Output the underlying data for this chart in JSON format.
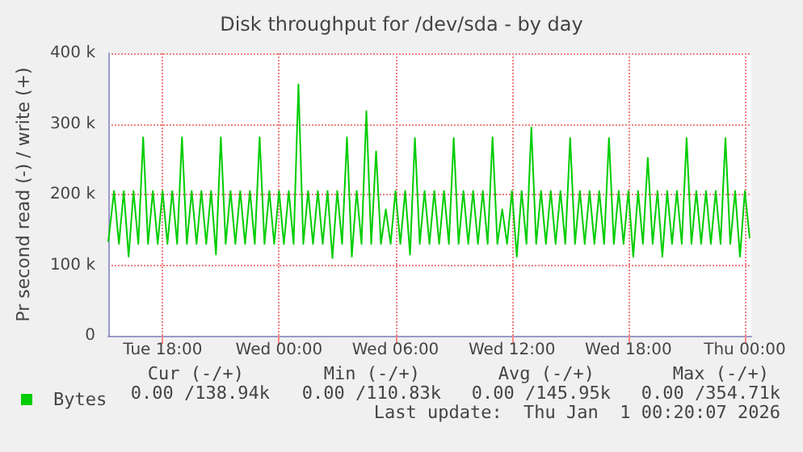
{
  "chart_data": {
    "type": "line",
    "title": "Disk throughput for /dev/sda - by day",
    "ylabel": "Pr second read (-) / write (+)",
    "x": [
      "2025-12-30T15:12",
      "2025-12-30T15:30",
      "2025-12-30T15:45",
      "2025-12-30T16:00",
      "2025-12-30T16:15",
      "2025-12-30T16:30",
      "2025-12-30T16:45",
      "2025-12-30T17:00",
      "2025-12-30T17:15",
      "2025-12-30T17:30",
      "2025-12-30T17:45",
      "2025-12-30T18:00",
      "2025-12-30T18:15",
      "2025-12-30T18:30",
      "2025-12-30T18:45",
      "2025-12-30T19:00",
      "2025-12-30T19:15",
      "2025-12-30T19:30",
      "2025-12-30T19:45",
      "2025-12-30T20:00",
      "2025-12-30T20:15",
      "2025-12-30T20:30",
      "2025-12-30T20:45",
      "2025-12-30T21:00",
      "2025-12-30T21:15",
      "2025-12-30T21:30",
      "2025-12-30T21:45",
      "2025-12-30T22:00",
      "2025-12-30T22:15",
      "2025-12-30T22:30",
      "2025-12-30T22:45",
      "2025-12-30T23:00",
      "2025-12-30T23:15",
      "2025-12-30T23:30",
      "2025-12-30T23:45",
      "2025-12-31T00:00",
      "2025-12-31T00:15",
      "2025-12-31T00:30",
      "2025-12-31T00:45",
      "2025-12-31T01:00",
      "2025-12-31T01:15",
      "2025-12-31T01:30",
      "2025-12-31T01:45",
      "2025-12-31T02:00",
      "2025-12-31T02:15",
      "2025-12-31T02:30",
      "2025-12-31T02:45",
      "2025-12-31T03:00",
      "2025-12-31T03:15",
      "2025-12-31T03:30",
      "2025-12-31T03:45",
      "2025-12-31T04:00",
      "2025-12-31T04:15",
      "2025-12-31T04:30",
      "2025-12-31T04:45",
      "2025-12-31T05:00",
      "2025-12-31T05:15",
      "2025-12-31T05:30",
      "2025-12-31T05:45",
      "2025-12-31T06:00",
      "2025-12-31T06:15",
      "2025-12-31T06:30",
      "2025-12-31T06:45",
      "2025-12-31T07:00",
      "2025-12-31T07:15",
      "2025-12-31T07:30",
      "2025-12-31T07:45",
      "2025-12-31T08:00",
      "2025-12-31T08:15",
      "2025-12-31T08:30",
      "2025-12-31T08:45",
      "2025-12-31T09:00",
      "2025-12-31T09:15",
      "2025-12-31T09:30",
      "2025-12-31T09:45",
      "2025-12-31T10:00",
      "2025-12-31T10:15",
      "2025-12-31T10:30",
      "2025-12-31T10:45",
      "2025-12-31T11:00",
      "2025-12-31T11:15",
      "2025-12-31T11:30",
      "2025-12-31T11:45",
      "2025-12-31T12:00",
      "2025-12-31T12:15",
      "2025-12-31T12:30",
      "2025-12-31T12:45",
      "2025-12-31T13:00",
      "2025-12-31T13:15",
      "2025-12-31T13:30",
      "2025-12-31T13:45",
      "2025-12-31T14:00",
      "2025-12-31T14:15",
      "2025-12-31T14:30",
      "2025-12-31T14:45",
      "2025-12-31T15:00",
      "2025-12-31T15:15",
      "2025-12-31T15:30",
      "2025-12-31T15:45",
      "2025-12-31T16:00",
      "2025-12-31T16:15",
      "2025-12-31T16:30",
      "2025-12-31T16:45",
      "2025-12-31T17:00",
      "2025-12-31T17:15",
      "2025-12-31T17:30",
      "2025-12-31T17:45",
      "2025-12-31T18:00",
      "2025-12-31T18:15",
      "2025-12-31T18:30",
      "2025-12-31T18:45",
      "2025-12-31T19:00",
      "2025-12-31T19:15",
      "2025-12-31T19:30",
      "2025-12-31T19:45",
      "2025-12-31T20:00",
      "2025-12-31T20:15",
      "2025-12-31T20:30",
      "2025-12-31T20:45",
      "2025-12-31T21:00",
      "2025-12-31T21:15",
      "2025-12-31T21:30",
      "2025-12-31T21:45",
      "2025-12-31T22:00",
      "2025-12-31T22:15",
      "2025-12-31T22:30",
      "2025-12-31T22:45",
      "2025-12-31T23:00",
      "2025-12-31T23:15",
      "2025-12-31T23:30",
      "2025-12-31T23:45",
      "2026-01-01T00:00",
      "2026-01-01T00:15"
    ],
    "series": [
      {
        "name": "Bytes",
        "color": "#00cc00",
        "values": [
          133,
          205,
          130,
          205,
          112,
          205,
          130,
          281,
          130,
          205,
          130,
          205,
          130,
          205,
          130,
          281,
          130,
          205,
          130,
          205,
          130,
          205,
          115,
          281,
          130,
          205,
          130,
          205,
          130,
          205,
          130,
          281,
          130,
          205,
          130,
          205,
          130,
          205,
          130,
          356,
          130,
          205,
          130,
          205,
          130,
          205,
          110,
          205,
          130,
          281,
          112,
          205,
          130,
          318,
          130,
          261,
          130,
          179,
          130,
          205,
          130,
          205,
          115,
          280,
          130,
          205,
          130,
          205,
          130,
          205,
          130,
          280,
          130,
          205,
          130,
          205,
          130,
          205,
          130,
          281,
          130,
          179,
          130,
          205,
          112,
          205,
          130,
          295,
          130,
          205,
          130,
          205,
          130,
          205,
          130,
          280,
          130,
          205,
          130,
          205,
          130,
          205,
          130,
          280,
          130,
          205,
          130,
          205,
          112,
          205,
          130,
          252,
          130,
          205,
          112,
          205,
          130,
          205,
          130,
          280,
          130,
          205,
          130,
          205,
          130,
          205,
          130,
          280,
          130,
          205,
          112,
          205,
          138
        ]
      }
    ],
    "xlim": [
      "2025-12-30T15:12",
      "2026-01-01T00:20"
    ],
    "xticks": [
      {
        "value": "2025-12-30T18:00",
        "label": "Tue 18:00"
      },
      {
        "value": "2025-12-31T00:00",
        "label": "Wed 00:00"
      },
      {
        "value": "2025-12-31T06:00",
        "label": "Wed 06:00"
      },
      {
        "value": "2025-12-31T12:00",
        "label": "Wed 12:00"
      },
      {
        "value": "2025-12-31T18:00",
        "label": "Wed 18:00"
      },
      {
        "value": "2026-01-01T00:00",
        "label": "Thu 00:00"
      }
    ],
    "ylim": [
      0,
      400
    ],
    "yticks": [
      {
        "value": 0,
        "label": "0"
      },
      {
        "value": 100,
        "label": "100 k"
      },
      {
        "value": 200,
        "label": "200 k"
      },
      {
        "value": 300,
        "label": "300 k"
      },
      {
        "value": 400,
        "label": "400 k"
      }
    ],
    "grid": true,
    "legend": "bottom left",
    "marker": "none",
    "line_style": "solid",
    "annotations": [
      "Cur (-/+)",
      "Min (-/+)",
      "Avg (-/+)",
      "Max (-/+)",
      "0.00 /138.94k",
      "0.00 /110.83k",
      "0.00 /145.95k",
      "0.00 /354.71k",
      "Last update:  Thu Jan  1 00:20:07 2026"
    ]
  }
}
